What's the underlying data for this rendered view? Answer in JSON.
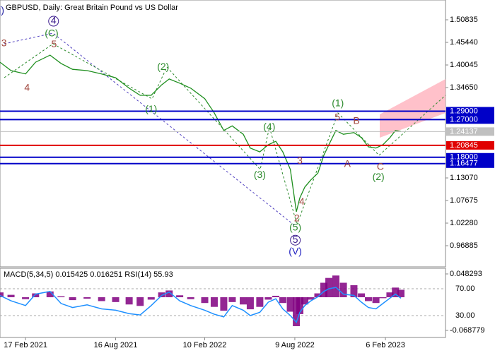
{
  "chart_data": [
    {
      "type": "line",
      "title": "GBPUSD, Daily:  Great Britain Pound vs US Dollar",
      "color": "#1f8f1f",
      "xlim": [
        "28 Dec 2020",
        "6 Jun 2023"
      ],
      "x": [
        "28 Dec 2020",
        "19 Jan 2021",
        "17 Feb 2021",
        "9 Mar 2021",
        "7 Apr 2021",
        "29 Apr 2021",
        "22 May 2021",
        "20 Jun 2021",
        "19 Jul 2021",
        "16 Aug 2021",
        "12 Sep 2021",
        "4 Oct 2021",
        "26 Oct 2021",
        "16 Nov 2021",
        "1 Dec 2021",
        "22 Dec 2021",
        "13 Jan 2022",
        "10 Feb 2022",
        "1 Mar 2022",
        "20 Mar 2022",
        "6 Apr 2022",
        "28 Apr 2022",
        "12 May 2022",
        "31 May 2022",
        "17 Jun 2022",
        "2 Jul 2022",
        "16 Jul 2022",
        "31 Jul 2022",
        "12 Aug 2022",
        "19 Aug 2022",
        "29 Aug 2022",
        "10 Sep 2022",
        "24 Sep 2022",
        "6 Oct 2022",
        "16 Oct 2022",
        "30 Oct 2022",
        "14 Nov 2022",
        "5 Dec 2022",
        "20 Dec 2022",
        "3 Jan 2023",
        "18 Jan 2023",
        "1 Feb 2023",
        "15 Feb 2023",
        "26 Feb 2023",
        "9 Mar 2023"
      ],
      "values": [
        1.407,
        1.387,
        1.379,
        1.407,
        1.424,
        1.404,
        1.39,
        1.387,
        1.379,
        1.37,
        1.345,
        1.328,
        1.328,
        1.353,
        1.367,
        1.357,
        1.345,
        1.32,
        1.286,
        1.244,
        1.255,
        1.235,
        1.202,
        1.193,
        1.21,
        1.218,
        1.193,
        1.151,
        1.05,
        1.083,
        1.109,
        1.126,
        1.142,
        1.185,
        1.21,
        1.244,
        1.235,
        1.239,
        1.227,
        1.205,
        1.202,
        1.21,
        1.227,
        1.244,
        1.24137
      ],
      "ylim": [
        0.9183,
        1.5556
      ],
      "yticks": [
        1.50835,
        {
          "value": 1.4544,
          "label": "1.45440"
        },
        1.40045,
        {
          "value": 1.3465,
          "label": "1.34650"
        },
        {
          "value": 1.1307,
          "label": "1.13070"
        },
        1.07675,
        {
          "value": 1.0228,
          "label": "1.02280"
        },
        0.96885
      ],
      "levels": [
        {
          "value": 1.29,
          "label": "1.29000",
          "color": "#0000c8",
          "width": 2
        },
        {
          "value": 1.27,
          "label": "1.27000",
          "color": "#0000c8",
          "width": 2
        },
        {
          "value": 1.24137,
          "label": "1.24137",
          "color": "#c0c0c0",
          "width": 1
        },
        {
          "value": 1.20845,
          "label": "1.20845",
          "color": "#e00000",
          "width": 2
        },
        {
          "value": 1.18,
          "label": "1.18000",
          "color": "#0000c8",
          "width": 2
        },
        {
          "value": 1.16477,
          "label": "1.16477",
          "color": "#0000c8",
          "width": 2
        }
      ],
      "annotations": [
        {
          "text": "j)",
          "x": "31 Dec 2020",
          "y": 1.53,
          "color": "#2020a0"
        },
        {
          "text": "3",
          "x": "5 Jan 2021",
          "y": 1.451,
          "color": "#a0463c"
        },
        {
          "text": "4",
          "x": "20 Feb 2021",
          "y": 1.345,
          "color": "#a0463c"
        },
        {
          "text": "4",
          "x": "14 Apr 2021",
          "y": 1.505,
          "color": "#3a1a8c",
          "circled": true
        },
        {
          "text": "(C)",
          "x": "10 Apr 2021",
          "y": 1.475,
          "color": "#2e8b2e"
        },
        {
          "text": "5",
          "x": "15 Apr 2021",
          "y": 1.449,
          "color": "#a0463c"
        },
        {
          "text": "(2)",
          "x": "19 Nov 2021",
          "y": 1.395,
          "color": "#2e8b2e"
        },
        {
          "text": "(1)",
          "x": "26 Oct 2021",
          "y": 1.294,
          "color": "#2e8b2e"
        },
        {
          "text": "(4)",
          "x": "19 Jun 2022",
          "y": 1.252,
          "color": "#2e8b2e"
        },
        {
          "text": "(3)",
          "x": "31 May 2022",
          "y": 1.137,
          "color": "#2e8b2e"
        },
        {
          "text": "3",
          "x": "19 Aug 2022",
          "y": 1.171,
          "color": "#a0463c"
        },
        {
          "text": "4",
          "x": "23 Aug 2022",
          "y": 1.073,
          "color": "#a0463c"
        },
        {
          "text": "2",
          "x": "13 Aug 2022",
          "y": 1.033,
          "color": "#a0463c"
        },
        {
          "text": "(5)",
          "x": "10 Aug 2022",
          "y": 1.011,
          "color": "#2e8b2e"
        },
        {
          "text": "5",
          "x": "10 Aug 2022",
          "y": 0.982,
          "color": "#3a1a8c",
          "circled": true
        },
        {
          "text": "(V)",
          "x": "10 Aug 2022",
          "y": 0.954,
          "color": "#2020c0"
        },
        {
          "text": "(1)",
          "x": "3 Nov 2022",
          "y": 1.308,
          "color": "#2e8b2e"
        },
        {
          "text": "5",
          "x": "2 Nov 2022",
          "y": 1.274,
          "color": "#a0463c"
        },
        {
          "text": "B",
          "x": "10 Dec 2022",
          "y": 1.266,
          "color": "#a0463c"
        },
        {
          "text": "A",
          "x": "22 Nov 2022",
          "y": 1.163,
          "color": "#a0463c"
        },
        {
          "text": "C",
          "x": "27 Jan 2023",
          "y": 1.156,
          "color": "#a0463c"
        },
        {
          "text": "(2)",
          "x": "23 Jan 2023",
          "y": 1.132,
          "color": "#2e8b2e"
        }
      ]
    },
    {
      "type": "macd",
      "title": "MACD(5,34,5) 0.015425 0.016251 RSI(14) 55.93",
      "histogram": {
        "color": "#800080",
        "values": [
          0.01,
          0.005,
          -0.004,
          0.008,
          0.012,
          0.002,
          -0.006,
          -0.003,
          -0.008,
          -0.01,
          -0.015,
          -0.018,
          -0.005,
          0.01,
          0.014,
          0.004,
          -0.004,
          -0.012,
          -0.02,
          -0.028,
          -0.01,
          -0.015,
          -0.025,
          -0.02,
          -0.005,
          0.003,
          -0.012,
          -0.03,
          -0.06,
          -0.035,
          -0.015,
          -0.005,
          0.008,
          0.03,
          0.04,
          0.045,
          0.03,
          0.025,
          0.008,
          -0.008,
          -0.012,
          -0.002,
          0.01,
          0.02,
          0.015425
        ]
      },
      "line": {
        "color": "#1e90ff",
        "values": [
          60,
          52,
          45,
          62,
          66,
          48,
          42,
          46,
          40,
          38,
          33,
          31,
          45,
          60,
          65,
          52,
          45,
          38,
          32,
          28,
          45,
          38,
          30,
          35,
          50,
          55,
          40,
          30,
          20,
          35,
          45,
          52,
          58,
          66,
          70,
          72,
          62,
          60,
          50,
          42,
          40,
          48,
          56,
          62,
          55.93
        ]
      },
      "ylim": [
        -0.0834,
        0.06
      ],
      "yticks": [
        0.048293,
        -0.068779
      ],
      "y2lim": [
        -2.6,
        100.5
      ],
      "y2ticks": [
        {
          "value": 70,
          "label": "70.00"
        },
        {
          "value": 30,
          "label": "30.00"
        }
      ],
      "xlim": [
        "28 Dec 2020",
        "6 Jun 2023"
      ],
      "xticks": [
        "17 Feb 2021",
        "16 Aug 2021",
        "10 Feb 2022",
        "9 Aug 2022",
        "6 Feb 2023"
      ]
    }
  ]
}
